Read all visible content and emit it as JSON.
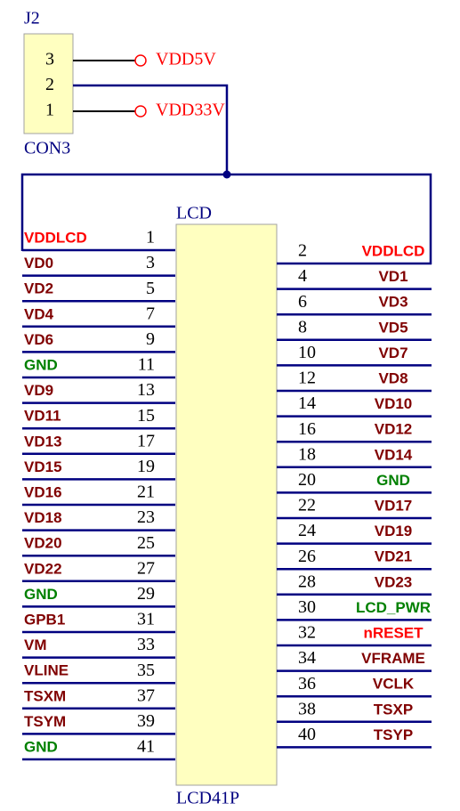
{
  "j2": {
    "ref": "J2",
    "value": "CON3",
    "pins": [
      {
        "number": 3,
        "net": "VDD5V",
        "color": "#ff0000"
      },
      {
        "number": 2
      },
      {
        "number": 1,
        "net": "VDD33V",
        "color": "#ff0000"
      }
    ]
  },
  "lcd": {
    "ref": "LCD",
    "value": "LCD41P",
    "left": [
      {
        "pin": 1,
        "net": "VDDLCD",
        "color": "#ff0000"
      },
      {
        "pin": 3,
        "net": "VD0",
        "color": "#800000"
      },
      {
        "pin": 5,
        "net": "VD2",
        "color": "#800000"
      },
      {
        "pin": 7,
        "net": "VD4",
        "color": "#800000"
      },
      {
        "pin": 9,
        "net": "VD6",
        "color": "#800000"
      },
      {
        "pin": 11,
        "net": "GND",
        "color": "#008000"
      },
      {
        "pin": 13,
        "net": "VD9",
        "color": "#800000"
      },
      {
        "pin": 15,
        "net": "VD11",
        "color": "#800000"
      },
      {
        "pin": 17,
        "net": "VD13",
        "color": "#800000"
      },
      {
        "pin": 19,
        "net": "VD15",
        "color": "#800000"
      },
      {
        "pin": 21,
        "net": "VD16",
        "color": "#800000"
      },
      {
        "pin": 23,
        "net": "VD18",
        "color": "#800000"
      },
      {
        "pin": 25,
        "net": "VD20",
        "color": "#800000"
      },
      {
        "pin": 27,
        "net": "VD22",
        "color": "#800000"
      },
      {
        "pin": 29,
        "net": "GND",
        "color": "#008000"
      },
      {
        "pin": 31,
        "net": "GPB1",
        "color": "#800000"
      },
      {
        "pin": 33,
        "net": "VM",
        "color": "#800000"
      },
      {
        "pin": 35,
        "net": "VLINE",
        "color": "#800000"
      },
      {
        "pin": 37,
        "net": "TSXM",
        "color": "#800000"
      },
      {
        "pin": 39,
        "net": "TSYM",
        "color": "#800000"
      },
      {
        "pin": 41,
        "net": "GND",
        "color": "#008000"
      }
    ],
    "right": [
      {
        "pin": 2,
        "net": "VDDLCD",
        "color": "#ff0000"
      },
      {
        "pin": 4,
        "net": "VD1",
        "color": "#800000"
      },
      {
        "pin": 6,
        "net": "VD3",
        "color": "#800000"
      },
      {
        "pin": 8,
        "net": "VD5",
        "color": "#800000"
      },
      {
        "pin": 10,
        "net": "VD7",
        "color": "#800000"
      },
      {
        "pin": 12,
        "net": "VD8",
        "color": "#800000"
      },
      {
        "pin": 14,
        "net": "VD10",
        "color": "#800000"
      },
      {
        "pin": 16,
        "net": "VD12",
        "color": "#800000"
      },
      {
        "pin": 18,
        "net": "VD14",
        "color": "#800000"
      },
      {
        "pin": 20,
        "net": "GND",
        "color": "#008000"
      },
      {
        "pin": 22,
        "net": "VD17",
        "color": "#800000"
      },
      {
        "pin": 24,
        "net": "VD19",
        "color": "#800000"
      },
      {
        "pin": 26,
        "net": "VD21",
        "color": "#800000"
      },
      {
        "pin": 28,
        "net": "VD23",
        "color": "#800000"
      },
      {
        "pin": 30,
        "net": "LCD_PWR",
        "color": "#008000"
      },
      {
        "pin": 32,
        "net": "nRESET",
        "color": "#ff0000"
      },
      {
        "pin": 34,
        "net": "VFRAME",
        "color": "#800000"
      },
      {
        "pin": 36,
        "net": "VCLK",
        "color": "#800000"
      },
      {
        "pin": 38,
        "net": "TSXP",
        "color": "#800000"
      },
      {
        "pin": 40,
        "net": "TSYP",
        "color": "#800000"
      }
    ]
  }
}
